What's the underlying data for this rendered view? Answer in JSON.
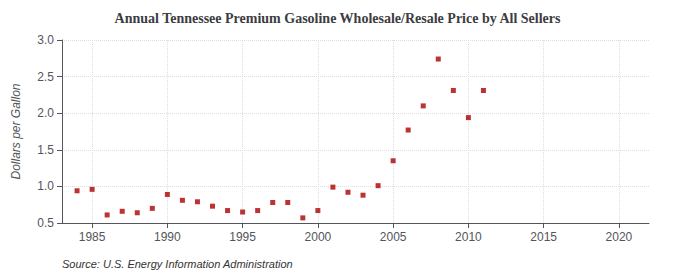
{
  "chart_data": {
    "type": "scatter",
    "title": "Annual Tennessee Premium Gasoline Wholesale/Resale Price by All Sellers",
    "ylabel": "Dollars per Gallon",
    "annotation": "Source: U.S. Energy Information Administration",
    "x": [
      1984,
      1985,
      1986,
      1987,
      1988,
      1989,
      1990,
      1991,
      1992,
      1993,
      1994,
      1995,
      1996,
      1997,
      1998,
      1999,
      2000,
      2001,
      2002,
      2003,
      2004,
      2005,
      2006,
      2007,
      2008,
      2009,
      2010,
      2011
    ],
    "values": [
      0.94,
      0.96,
      0.61,
      0.66,
      0.64,
      0.7,
      0.89,
      0.81,
      0.79,
      0.73,
      0.67,
      0.65,
      0.67,
      0.78,
      0.78,
      0.57,
      0.67,
      0.99,
      0.92,
      0.88,
      1.01,
      1.35,
      1.77,
      2.1,
      2.74,
      2.31,
      1.94,
      2.31
    ],
    "color": "#aa0000",
    "marker": "square",
    "xlim": [
      1983,
      2022
    ],
    "ylim": [
      0.5,
      3.0
    ],
    "xticks": [
      1985,
      1990,
      1995,
      2000,
      2005,
      2010,
      2015,
      2020
    ],
    "yticks": [
      0.5,
      {
        "value": 1,
        "label": "1.0"
      },
      1.5,
      {
        "value": 2,
        "label": "2.0"
      },
      2.5,
      {
        "value": 3,
        "label": "3.0"
      }
    ],
    "grid": true
  }
}
